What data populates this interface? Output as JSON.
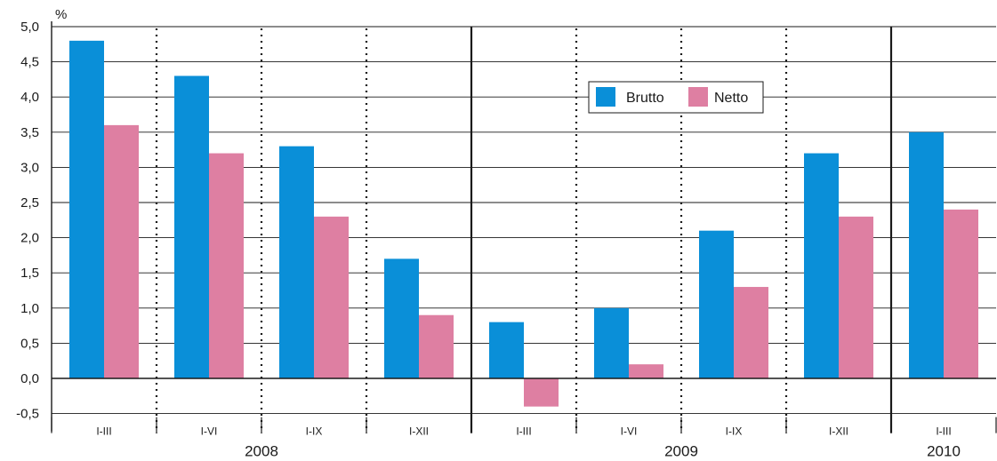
{
  "chart_data": {
    "type": "bar",
    "title": "",
    "ylabel": "%",
    "xlabel": "",
    "ylim": [
      -0.5,
      5.0
    ],
    "yticks": [
      -0.5,
      0.0,
      0.5,
      1.0,
      1.5,
      2.0,
      2.5,
      3.0,
      3.5,
      4.0,
      4.5,
      5.0
    ],
    "ytick_labels": [
      "-0,5",
      "0,0",
      "0,5",
      "1,0",
      "1,5",
      "2,0",
      "2,5",
      "3,0",
      "3,5",
      "4,0",
      "4,5",
      "5,0"
    ],
    "grid": "horizontal",
    "legend_position": "top-center",
    "categories": [
      "I-III",
      "I-VI",
      "I-IX",
      "I-XII",
      "I-III",
      "I-VI",
      "I-IX",
      "I-XII",
      "I-III"
    ],
    "years": [
      {
        "label": "2008",
        "count": 4
      },
      {
        "label": "2009",
        "count": 4
      },
      {
        "label": "2010",
        "count": 1
      }
    ],
    "series": [
      {
        "name": "Brutto",
        "color": "#0a8fd8",
        "values": [
          4.8,
          4.3,
          3.3,
          1.7,
          0.8,
          1.0,
          2.1,
          3.2,
          3.5
        ]
      },
      {
        "name": "Netto",
        "color": "#de7fa2",
        "values": [
          3.6,
          3.2,
          2.3,
          0.9,
          -0.4,
          0.2,
          1.3,
          2.3,
          2.4
        ]
      }
    ]
  }
}
